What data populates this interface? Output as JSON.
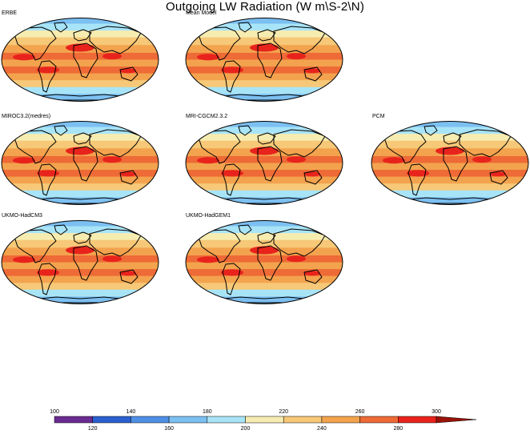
{
  "title": "Outgoing LW Radiation (W m\\S-2\\N)",
  "panels": [
    {
      "label": "ERBE"
    },
    {
      "label": "Mean Model"
    },
    {
      "label": "MIROC3.2(medres)"
    },
    {
      "label": "MRI-CGCM2.3.2"
    },
    {
      "label": "PCM"
    },
    {
      "label": "UKMO-HadCM3"
    },
    {
      "label": "UKMO-HadGEM1"
    }
  ],
  "colorbar": {
    "colors": [
      "#6a2c91",
      "#2a5fd0",
      "#4f8fe6",
      "#7cc0f2",
      "#a8e4f7",
      "#f7ecb0",
      "#f6c877",
      "#f3a34e",
      "#ee6a36",
      "#e8231c",
      "#9a1208"
    ],
    "top_labels": [
      "100",
      "140",
      "180",
      "220",
      "260",
      "300"
    ],
    "bottom_labels": [
      "120",
      "160",
      "200",
      "240",
      "280"
    ]
  },
  "map_style": {
    "ocean_color": "#f3a34e",
    "land_outline_color": "#000000",
    "band_colors": [
      "#7cc0f2",
      "#a8e4f7",
      "#f7ecb0",
      "#f6c877",
      "#f3a34e",
      "#ee6a36",
      "#e8231c"
    ]
  }
}
